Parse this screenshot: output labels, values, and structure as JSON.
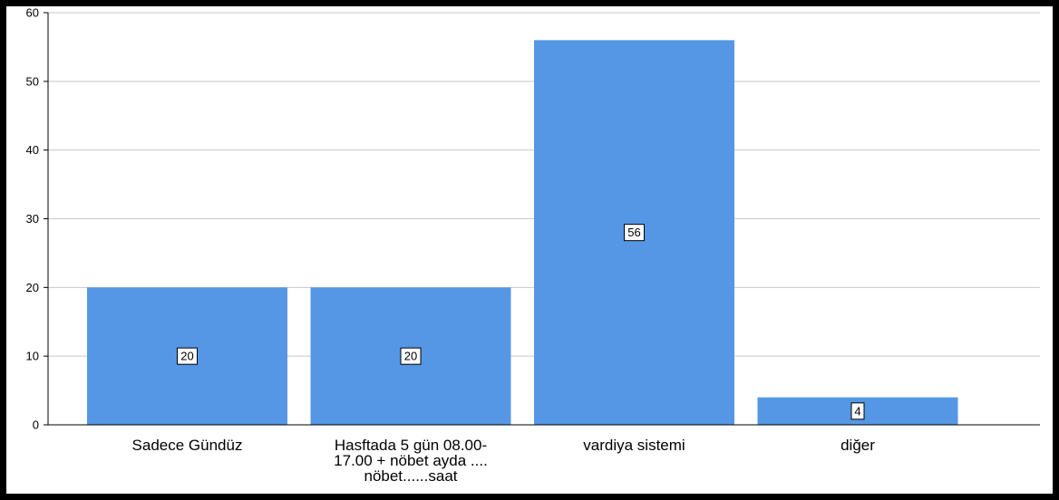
{
  "chart_data": {
    "type": "bar",
    "categories": [
      [
        "Sadece Gündüz"
      ],
      [
        "Hasftada 5 gün 08.00-",
        "17.00 + nöbet ayda ....",
        "nöbet......saat"
      ],
      [
        "vardiya sistemi"
      ],
      [
        "diğer"
      ]
    ],
    "values": [
      20,
      20,
      56,
      4
    ],
    "data_labels": [
      "20",
      "20",
      "56",
      "4"
    ],
    "ylim": [
      0,
      60
    ],
    "yticks": [
      0,
      10,
      20,
      30,
      40,
      50,
      60
    ],
    "ytick_labels": [
      "0",
      "10",
      "20",
      "30",
      "40",
      "50",
      "60"
    ],
    "grid": true,
    "colors": {
      "bar": "#5597e4",
      "grid": "#c8c8c8",
      "axis": "#000000",
      "label_box": "#ffffff",
      "label_border": "#000000"
    }
  }
}
